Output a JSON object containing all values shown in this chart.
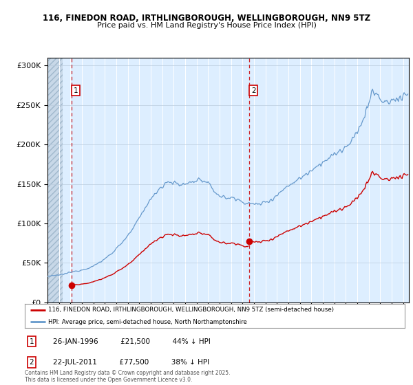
{
  "title": "116, FINEDON ROAD, IRTHLINGBOROUGH, WELLINGBOROUGH, NN9 5TZ",
  "subtitle": "Price paid vs. HM Land Registry's House Price Index (HPI)",
  "legend_line1": "116, FINEDON ROAD, IRTHLINGBOROUGH, WELLINGBOROUGH, NN9 5TZ (semi-detached house)",
  "legend_line2": "HPI: Average price, semi-detached house, North Northamptonshire",
  "transaction1_label": "1",
  "transaction1_date": "26-JAN-1996",
  "transaction1_price": "£21,500",
  "transaction1_hpi": "44% ↓ HPI",
  "transaction2_label": "2",
  "transaction2_date": "22-JUL-2011",
  "transaction2_price": "£77,500",
  "transaction2_hpi": "38% ↓ HPI",
  "copyright": "Contains HM Land Registry data © Crown copyright and database right 2025.\nThis data is licensed under the Open Government Licence v3.0.",
  "transaction1_x": 1996.07,
  "transaction1_y": 21500,
  "transaction2_x": 2011.55,
  "transaction2_y": 77500,
  "red_color": "#cc0000",
  "blue_color": "#6699cc",
  "background_color": "#ddeeff",
  "hatch_color": "#bbccdd",
  "ylim": [
    0,
    310000
  ],
  "xlim_start": 1994.0,
  "xlim_end": 2025.5,
  "hatch_end": 1995.3
}
